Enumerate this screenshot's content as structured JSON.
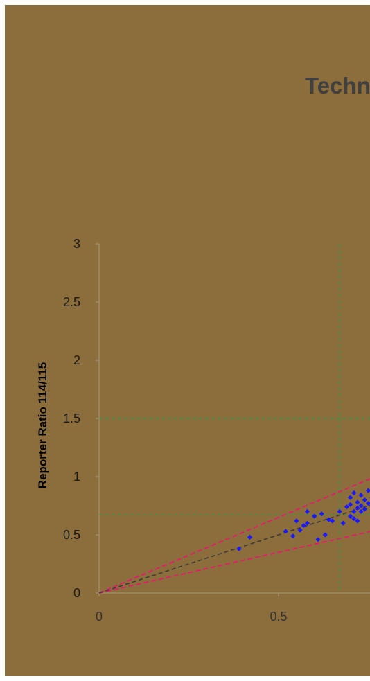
{
  "colors": {
    "background": "#8c6e3c",
    "points": "#1a1aff",
    "bounds": "#e8176f",
    "fit": "#3a3a3a",
    "guides": "#2e9e4a",
    "axis": "#a89a7a",
    "title": "#404040"
  },
  "chart_data": {
    "type": "scatter",
    "title": "Techn",
    "xlabel": "",
    "ylabel": "Reporter Ratio 114/115",
    "xlim": [
      0,
      0.76
    ],
    "ylim": [
      0,
      3
    ],
    "x_ticks": [
      "0",
      "0.5"
    ],
    "y_ticks": [
      "0",
      "0.5",
      "1",
      "1.5",
      "2",
      "2.5",
      "3"
    ],
    "grid": false,
    "guide_lines": {
      "x": [
        0.67
      ],
      "y": [
        0.67,
        1.5
      ]
    },
    "reference_lines": [
      {
        "name": "",
        "style": "dashed",
        "slope": 1.3
      },
      {
        "name": "",
        "style": "dashed",
        "slope": 0.7
      },
      {
        "name": "",
        "style": "dashed",
        "slope": 1.0
      }
    ],
    "series": [
      {
        "points": [
          [
            0.39,
            0.38
          ],
          [
            0.42,
            0.48
          ],
          [
            0.52,
            0.53
          ],
          [
            0.54,
            0.49
          ],
          [
            0.55,
            0.62
          ],
          [
            0.56,
            0.54
          ],
          [
            0.57,
            0.58
          ],
          [
            0.58,
            0.6
          ],
          [
            0.58,
            0.7
          ],
          [
            0.6,
            0.66
          ],
          [
            0.61,
            0.46
          ],
          [
            0.62,
            0.68
          ],
          [
            0.63,
            0.5
          ],
          [
            0.64,
            0.63
          ],
          [
            0.65,
            0.62
          ],
          [
            0.67,
            0.7
          ],
          [
            0.68,
            0.6
          ],
          [
            0.69,
            0.74
          ],
          [
            0.7,
            0.66
          ],
          [
            0.7,
            0.76
          ],
          [
            0.7,
            0.82
          ],
          [
            0.71,
            0.7
          ],
          [
            0.71,
            0.86
          ],
          [
            0.72,
            0.73
          ],
          [
            0.72,
            0.62
          ],
          [
            0.72,
            0.78
          ],
          [
            0.73,
            0.7
          ],
          [
            0.73,
            0.84
          ],
          [
            0.73,
            0.75
          ],
          [
            0.74,
            0.72
          ],
          [
            0.74,
            0.8
          ],
          [
            0.75,
            0.77
          ],
          [
            0.75,
            0.88
          ],
          [
            0.76,
            0.74
          ],
          [
            0.76,
            0.82
          ],
          [
            0.71,
            0.64
          ]
        ]
      }
    ]
  }
}
